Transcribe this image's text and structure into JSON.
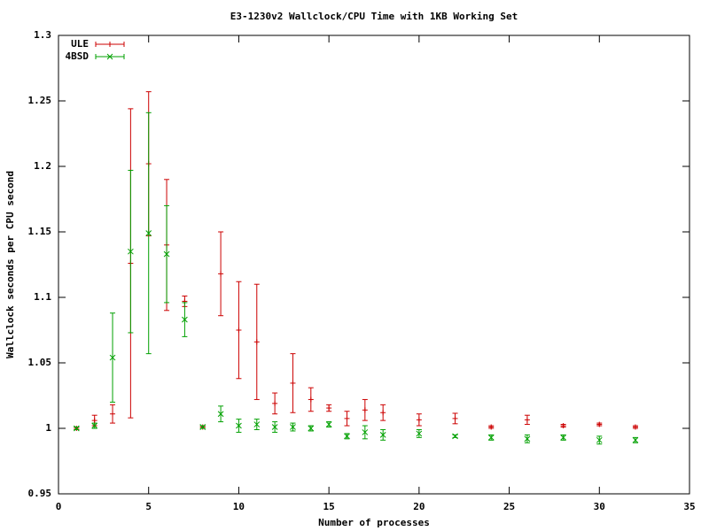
{
  "chart_data": {
    "type": "errorbar",
    "title": "E3-1230v2 Wallclock/CPU Time with 1KB Working Set",
    "x_label": "Number of processes",
    "y_label": "Wallclock seconds per CPU second",
    "xlim": [
      0,
      35
    ],
    "xticks": [
      0,
      5,
      10,
      15,
      20,
      25,
      30,
      35
    ],
    "ylim": [
      0.95,
      1.3
    ],
    "yticks": [
      0.95,
      1,
      1.05,
      1.1,
      1.15,
      1.2,
      1.25,
      1.3
    ],
    "legend": "top-left",
    "x": [
      1,
      2,
      3,
      4,
      5,
      6,
      7,
      8,
      9,
      10,
      11,
      12,
      13,
      14,
      15,
      16,
      17,
      18,
      20,
      22,
      24,
      26,
      28,
      30,
      32
    ],
    "series": [
      {
        "name": "ULE",
        "color": "#cc0000",
        "marker": "plus",
        "values": [
          1.0,
          1.006,
          1.011,
          1.126,
          1.202,
          1.14,
          1.097,
          1.001,
          1.118,
          1.075,
          1.066,
          1.019,
          1.0345,
          1.022,
          1.0155,
          1.0075,
          1.014,
          1.012,
          1.0065,
          1.0075,
          1.001,
          1.0065,
          1.002,
          1.003,
          1.001
        ],
        "errors": [
          0.001,
          0.004,
          0.007,
          0.118,
          0.055,
          0.05,
          0.004,
          0.001,
          0.032,
          0.037,
          0.044,
          0.008,
          0.0225,
          0.009,
          0.0025,
          0.0055,
          0.008,
          0.006,
          0.0045,
          0.004,
          0.001,
          0.0035,
          0.001,
          0.001,
          0.001
        ]
      },
      {
        "name": "4BSD",
        "color": "#00a000",
        "marker": "cross",
        "values": [
          1.0,
          1.002,
          1.054,
          1.135,
          1.149,
          1.133,
          1.083,
          1.001,
          1.011,
          1.002,
          1.003,
          1.001,
          1.001,
          1.0,
          1.003,
          0.994,
          0.997,
          0.995,
          0.996,
          0.994,
          0.993,
          0.992,
          0.993,
          0.991,
          0.991
        ],
        "errors": [
          0.001,
          0.002,
          0.034,
          0.062,
          0.092,
          0.037,
          0.013,
          0.001,
          0.006,
          0.005,
          0.004,
          0.004,
          0.003,
          0.002,
          0.002,
          0.002,
          0.005,
          0.004,
          0.003,
          0.001,
          0.002,
          0.003,
          0.002,
          0.003,
          0.002
        ]
      }
    ]
  }
}
